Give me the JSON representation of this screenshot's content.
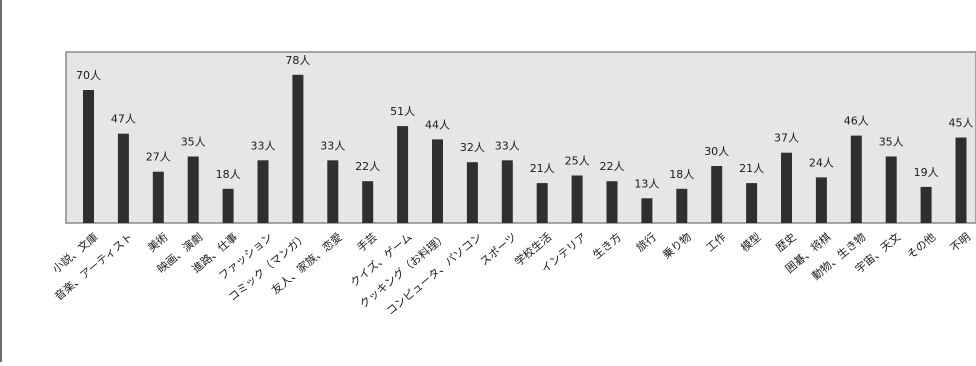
{
  "chart_data": {
    "type": "bar",
    "categories": [
      "小説、文庫",
      "音楽、アーティスト",
      "美術",
      "映画、演劇",
      "進路、仕事",
      "ファッション",
      "コミック（マンガ）",
      "友人、家族、恋愛",
      "手芸",
      "クイズ、ゲーム",
      "クッキング（お料理）",
      "コンピュータ、パソコン",
      "スポーツ",
      "学校生活",
      "インテリア",
      "生き方",
      "旅行",
      "乗り物",
      "工作",
      "模型",
      "歴史",
      "囲碁、将棋",
      "動物、生き物",
      "宇宙、天文",
      "その他",
      "不明"
    ],
    "values": [
      70,
      47,
      27,
      35,
      18,
      33,
      78,
      33,
      22,
      51,
      44,
      32,
      33,
      21,
      25,
      22,
      13,
      18,
      30,
      21,
      37,
      24,
      46,
      35,
      19,
      45
    ],
    "data_labels": [
      "70人",
      "47人",
      "27人",
      "35人",
      "18人",
      "33人",
      "78人",
      "33人",
      "22人",
      "51人",
      "44人",
      "32人",
      "33人",
      "21人",
      "25人",
      "22人",
      "13人",
      "18人",
      "30人",
      "21人",
      "37人",
      "24人",
      "46人",
      "35人",
      "19人",
      "45人"
    ],
    "ylim": [
      0,
      80
    ],
    "grid": false,
    "legend": "none",
    "colors": {
      "bar": "#2f2f2f",
      "plot_bg": "#e6e6e6",
      "plot_border": "#8a8a8a",
      "page_border": "#6e6e6e",
      "text": "#1a1a1a"
    }
  }
}
